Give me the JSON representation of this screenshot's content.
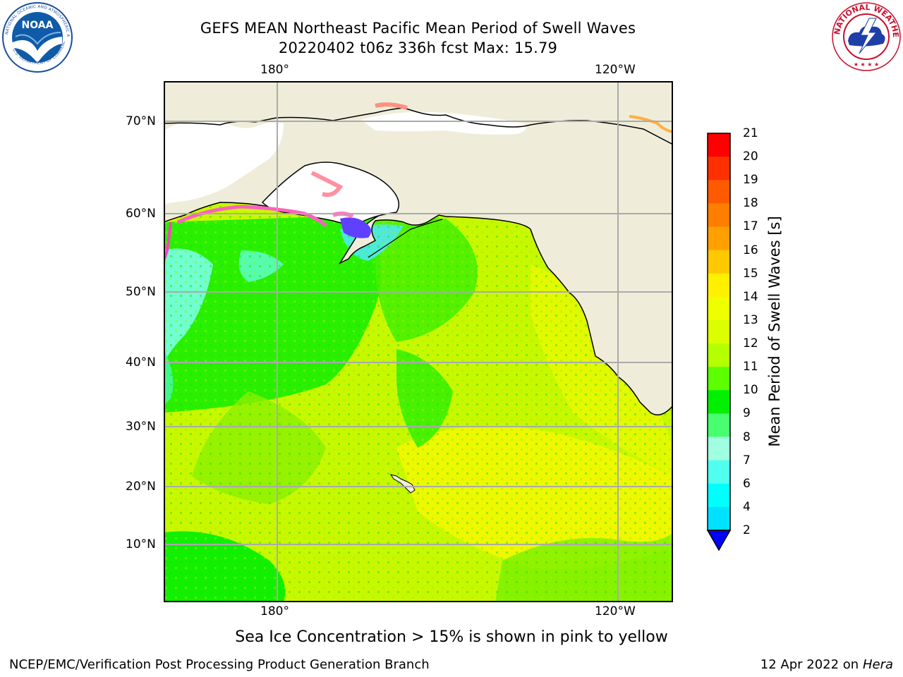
{
  "header": {
    "title_line1": "GEFS MEAN Northeast Pacific Mean Period of Swell Waves",
    "title_line2": "20220402 t06z 336h fcst   Max: 15.79"
  },
  "logos": {
    "noaa": {
      "icon": "noaa-logo",
      "text": "NOAA"
    },
    "nws": {
      "icon": "nws-logo"
    }
  },
  "map": {
    "lon_labels_top": [
      "180°",
      "120°W"
    ],
    "lon_labels_bottom": [
      "180°",
      "120°W"
    ],
    "lat_labels": [
      "70°N",
      "60°N",
      "50°N",
      "40°N",
      "30°N",
      "20°N",
      "10°N"
    ],
    "colors": {
      "land": "#efedda",
      "ocean_green": "#22f000",
      "ocean_lime": "#c8f800",
      "ocean_yellow": "#eef800",
      "ice_pink": "#f080c0"
    }
  },
  "colorbar": {
    "title": "Mean Period of Swell Waves [s]",
    "labels": [
      "21",
      "20",
      "19",
      "18",
      "17",
      "16",
      "15",
      "14",
      "13",
      "12",
      "11",
      "10",
      "9",
      "8",
      "7",
      "6",
      "4",
      "2"
    ],
    "colors": [
      "#ff0000",
      "#ff3000",
      "#ff5a00",
      "#ff7e00",
      "#ffa000",
      "#ffc800",
      "#fff000",
      "#f0ff00",
      "#dcff00",
      "#b4ff00",
      "#5cff00",
      "#00f000",
      "#48ff70",
      "#a0ffe0",
      "#50fff0",
      "#00ffff",
      "#00e0ff",
      "#0080ff"
    ],
    "extend_color": "#0000ff"
  },
  "footer": {
    "caption": "Sea Ice Concentration > 15% is shown in pink to yellow",
    "left": "NCEP/EMC/Verification Post Processing Product Generation Branch",
    "right_date": "12 Apr 2022 on ",
    "right_host": "Hera"
  }
}
